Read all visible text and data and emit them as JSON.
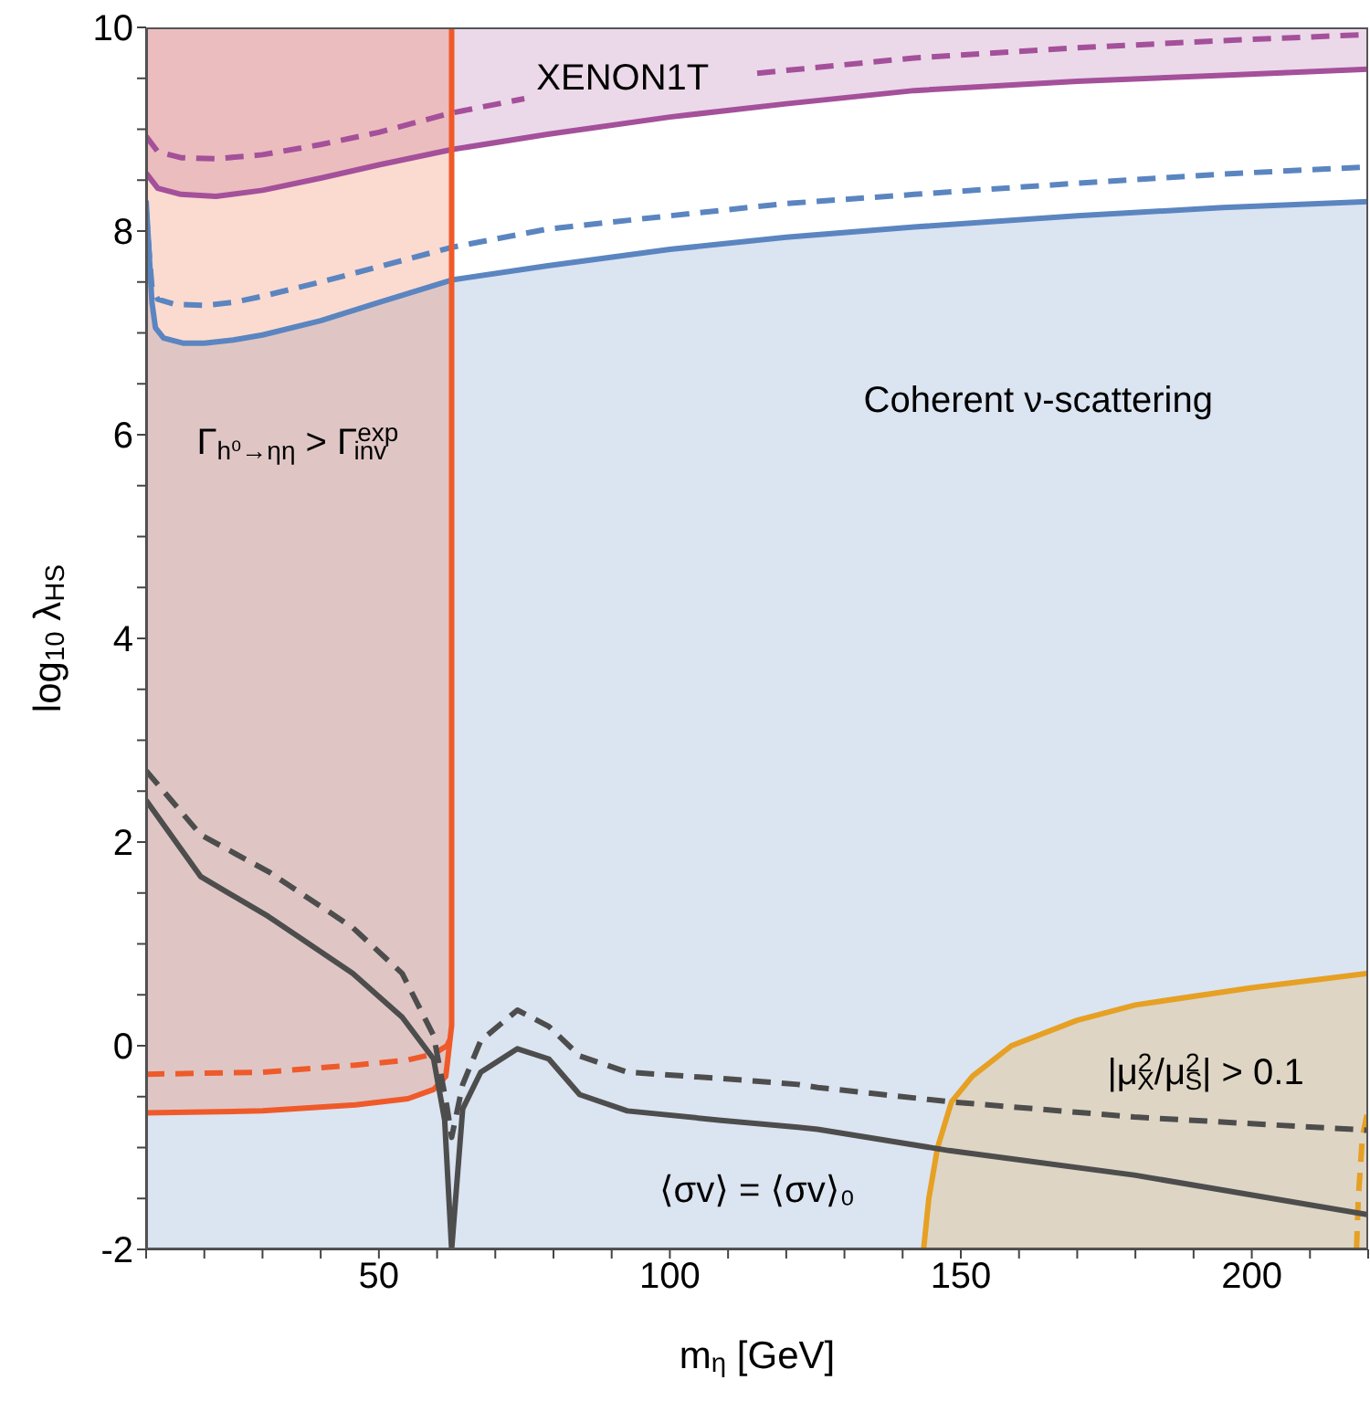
{
  "chart_data": {
    "type": "line",
    "xlabel": "m$_{η}$ [GeV]",
    "ylabel": "log$_{10}$ λ$_{HS}$",
    "xlim": [
      10,
      220
    ],
    "ylim": [
      -2,
      10
    ],
    "xticks": [
      {
        "value": 10,
        "label": null
      },
      {
        "value": 20,
        "label": null
      },
      {
        "value": 30,
        "label": null
      },
      {
        "value": 40,
        "label": null
      },
      50,
      {
        "value": 60,
        "label": null
      },
      {
        "value": 70,
        "label": null
      },
      {
        "value": 80,
        "label": null
      },
      {
        "value": 90,
        "label": null
      },
      100,
      {
        "value": 110,
        "label": null
      },
      {
        "value": 120,
        "label": null
      },
      {
        "value": 130,
        "label": null
      },
      {
        "value": 140,
        "label": null
      },
      150,
      {
        "value": 160,
        "label": null
      },
      {
        "value": 170,
        "label": null
      },
      {
        "value": 180,
        "label": null
      },
      {
        "value": 190,
        "label": null
      },
      200,
      {
        "value": 210,
        "label": null
      },
      {
        "value": 220,
        "label": null
      }
    ],
    "yticks": [
      -2,
      {
        "value": -1.5,
        "label": null
      },
      {
        "value": -1,
        "label": null
      },
      {
        "value": -0.5,
        "label": null
      },
      0,
      {
        "value": 0.5,
        "label": null
      },
      {
        "value": 1,
        "label": null
      },
      {
        "value": 1.5,
        "label": null
      },
      2,
      {
        "value": 2.5,
        "label": null
      },
      {
        "value": 3,
        "label": null
      },
      {
        "value": 3.5,
        "label": null
      },
      4,
      {
        "value": 4.5,
        "label": null
      },
      {
        "value": 5,
        "label": null
      },
      {
        "value": 5.5,
        "label": null
      },
      6,
      {
        "value": 6.5,
        "label": null
      },
      {
        "value": 7,
        "label": null
      },
      {
        "value": 7.5,
        "label": null
      },
      8,
      {
        "value": 8.5,
        "label": null
      },
      {
        "value": 9,
        "label": null
      },
      {
        "value": 9.5,
        "label": null
      },
      10
    ],
    "grid": false,
    "series": [
      {
        "color": "#5b85c0",
        "line_style": "solid",
        "x": [
          10,
          10.5,
          11,
          11.6,
          13,
          16.3,
          20,
          25,
          30,
          40,
          50,
          62.5,
          79,
          100,
          120,
          142,
          170,
          195,
          220
        ],
        "values": [
          8.3,
          7.8,
          7.3,
          7.05,
          6.95,
          6.9,
          6.9,
          6.93,
          6.98,
          7.12,
          7.3,
          7.52,
          7.66,
          7.82,
          7.94,
          8.04,
          8.15,
          8.23,
          8.29
        ],
        "lower": [
          -2,
          -2,
          -2,
          -2,
          -2,
          -2,
          -2,
          -2,
          -2,
          -2,
          -2,
          -2,
          -2,
          -2,
          -2,
          -2,
          -2,
          -2,
          -2
        ],
        "upper": [
          8.3,
          7.8,
          7.3,
          7.05,
          6.95,
          6.9,
          6.9,
          6.93,
          6.98,
          7.12,
          7.3,
          7.52,
          7.66,
          7.82,
          7.94,
          8.04,
          8.15,
          8.23,
          8.29
        ]
      },
      {
        "color": "#5b85c0",
        "line_style": "dashed",
        "x": [
          10,
          10.5,
          11,
          12,
          15,
          20,
          25,
          30,
          40,
          50,
          62.5,
          79,
          100,
          120,
          142,
          170,
          195,
          220
        ],
        "values": [
          8.2,
          7.8,
          7.45,
          7.33,
          7.28,
          7.27,
          7.3,
          7.36,
          7.5,
          7.65,
          7.84,
          8.02,
          8.15,
          8.27,
          8.36,
          8.47,
          8.56,
          8.63
        ]
      },
      {
        "color": "#a4509a",
        "line_style": "solid",
        "x": [
          10,
          12,
          16,
          22,
          30,
          40,
          50,
          62.5,
          79,
          100,
          120,
          142,
          170,
          195,
          220
        ],
        "values": [
          8.57,
          8.42,
          8.36,
          8.34,
          8.4,
          8.52,
          8.65,
          8.8,
          8.95,
          9.12,
          9.25,
          9.38,
          9.47,
          9.53,
          9.59
        ],
        "lower": [
          8.57,
          8.42,
          8.36,
          8.34,
          8.4,
          8.52,
          8.65,
          8.8,
          8.95,
          9.12,
          9.25,
          9.38,
          9.47,
          9.53,
          9.59
        ],
        "upper": [
          10,
          10,
          10,
          10,
          10,
          10,
          10,
          10,
          10,
          10,
          10,
          10,
          10,
          10,
          10
        ]
      },
      {
        "color": "#a4509a",
        "line_style": "dashed",
        "x": [
          10,
          12,
          16,
          22,
          30,
          40,
          50,
          62.5,
          75,
          95,
          115,
          142,
          170,
          195,
          220
        ],
        "values": [
          8.93,
          8.78,
          8.72,
          8.71,
          8.75,
          8.85,
          8.97,
          9.16,
          9.3,
          null,
          9.55,
          9.7,
          9.8,
          9.87,
          9.93
        ]
      },
      {
        "color": "#e6a024",
        "line_style": "solid",
        "x": [
          143.6,
          144.5,
          146,
          148.4,
          152,
          158.7,
          170,
          180,
          200,
          220
        ],
        "values": [
          -2,
          -1.5,
          -1,
          -0.55,
          -0.3,
          0,
          0.25,
          0.4,
          0.57,
          0.71
        ],
        "lower": [
          -2,
          -2,
          -2,
          -2,
          -2,
          -2,
          -2,
          -2,
          -2,
          -2
        ],
        "upper": [
          -2,
          -1.5,
          -1,
          -0.55,
          -0.3,
          0,
          0.25,
          0.4,
          0.57,
          0.71
        ]
      },
      {
        "color": "#e6a024",
        "line_style": "dashed",
        "x": [
          218,
          218.3,
          219,
          220
        ],
        "values": [
          -2,
          -1.5,
          -0.9,
          -0.62
        ]
      },
      {
        "color": "#ef5a2a",
        "line_style": "solid",
        "x": [
          10,
          30,
          46,
          55,
          59.4,
          61.5,
          62.5,
          62.5
        ],
        "values": [
          -0.66,
          -0.64,
          -0.58,
          -0.52,
          -0.43,
          -0.3,
          0.2,
          10
        ],
        "lower": [
          -0.66,
          -0.64,
          -0.58,
          -0.52,
          -0.43,
          -0.3,
          0.2,
          10
        ],
        "upper": [
          10,
          10,
          10,
          10,
          10,
          10,
          10,
          10
        ]
      },
      {
        "color": "#ef5a2a",
        "line_style": "dashed",
        "x": [
          10,
          30,
          46,
          55,
          59.4,
          61.7,
          62.5
        ],
        "values": [
          -0.28,
          -0.26,
          -0.19,
          -0.14,
          -0.08,
          0,
          0.1
        ]
      },
      {
        "color": "#4d4d4d",
        "line_style": "solid",
        "x": [
          10,
          19.4,
          31,
          45.5,
          54,
          59.4,
          61.3,
          62.5,
          64.4,
          67.5,
          73.8,
          79.2,
          84.5,
          92.7,
          108.4,
          122,
          125.4,
          148,
          179.8,
          220
        ],
        "values": [
          2.41,
          1.66,
          1.27,
          0.71,
          0.28,
          -0.13,
          -0.73,
          -2,
          -0.62,
          -0.26,
          -0.03,
          -0.13,
          -0.48,
          -0.64,
          -0.73,
          -0.8,
          -0.82,
          -1.03,
          -1.27,
          -1.66
        ]
      },
      {
        "color": "#4d4d4d",
        "line_style": "dashed",
        "x": [
          10,
          19.4,
          31,
          45.5,
          54,
          59.4,
          61.7,
          62.5,
          64.4,
          67.5,
          73.8,
          79.2,
          84.5,
          92.7,
          108.4,
          122,
          125.4,
          148,
          179.8,
          220
        ],
        "values": [
          2.7,
          2.07,
          1.71,
          1.16,
          0.71,
          0.1,
          -0.6,
          -0.9,
          -0.38,
          0.05,
          0.35,
          0.19,
          -0.1,
          -0.26,
          -0.32,
          -0.38,
          -0.41,
          -0.55,
          -0.7,
          -0.83
        ]
      }
    ],
    "annotations": [
      "XENON1T",
      "Coherent ν-scattering",
      "Γ$_{h⁰→ηη}$ > Γ$^{exp}$$_{inv}$",
      "|μ$^{2}$$_{X}$/μ$^{2}$$_{S}$| > 0.1",
      "⟨σv⟩ = ⟨σv⟩₀"
    ]
  }
}
